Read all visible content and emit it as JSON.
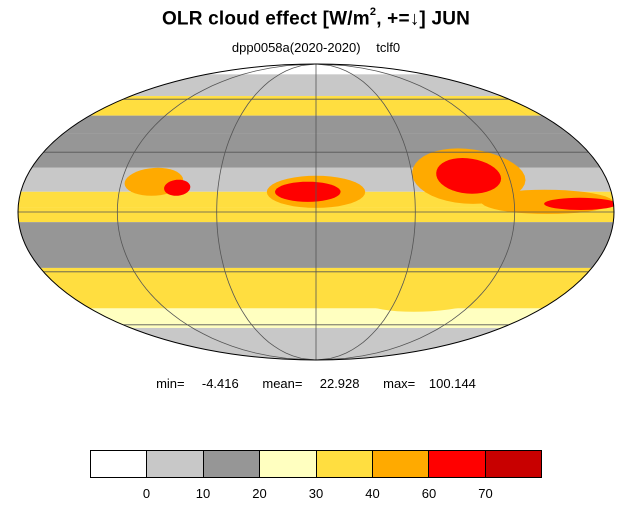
{
  "title": {
    "main": "OLR cloud effect [W/m",
    "sup": "2",
    "rest": ", +=↓]  JUN"
  },
  "subtitle": {
    "experiment": "dpp0058a(2020-2020)",
    "variable": "tclf0"
  },
  "stats": {
    "min_label": "min=",
    "min": "-4.416",
    "mean_label": "mean=",
    "mean": "22.928",
    "max_label": "max=",
    "max": "100.144"
  },
  "colorbar": {
    "colors": [
      "#ffffff",
      "#c8c8c8",
      "#969696",
      "#ffffc0",
      "#ffde40",
      "#ffaa00",
      "#ff0000",
      "#c80000"
    ],
    "ticks": [
      "0",
      "10",
      "20",
      "30",
      "40",
      "60",
      "70"
    ]
  },
  "map": {
    "projection": "mollweide",
    "field_bands": [
      {
        "lat": [
          78,
          90
        ],
        "color": "#ffffff"
      },
      {
        "lat": [
          62,
          78
        ],
        "color": "#c8c8c8"
      },
      {
        "lat": [
          50,
          62
        ],
        "color": "#ffde40"
      },
      {
        "lat": [
          40,
          50
        ],
        "color": "#969696"
      },
      {
        "lat": [
          22,
          40
        ],
        "color": "#969696"
      },
      {
        "lat": [
          10,
          22
        ],
        "color": "#c8c8c8"
      },
      {
        "lat": [
          2,
          10
        ],
        "color": "#ffde40"
      },
      {
        "lat": [
          -5,
          2
        ],
        "color": "#ffde40"
      },
      {
        "lat": [
          -28,
          -5
        ],
        "color": "#969696"
      },
      {
        "lat": [
          -50,
          -28
        ],
        "color": "#ffde40"
      },
      {
        "lat": [
          -62,
          -50
        ],
        "color": "#ffffc0"
      },
      {
        "lat": [
          -90,
          -62
        ],
        "color": "#c8c8c8"
      }
    ],
    "blobs": [
      {
        "lon": -100,
        "lat": 15,
        "rx": 18,
        "ry": 7,
        "color": "#ffaa00"
      },
      {
        "lon": -85,
        "lat": 12,
        "rx": 8,
        "ry": 4,
        "color": "#ff0000"
      },
      {
        "lon": 0,
        "lat": 10,
        "rx": 30,
        "ry": 8,
        "color": "#ffaa00"
      },
      {
        "lon": -5,
        "lat": 10,
        "rx": 20,
        "ry": 5,
        "color": "#ff0000"
      },
      {
        "lon": 95,
        "lat": 18,
        "rx": 35,
        "ry": 14,
        "color": "#ffaa00"
      },
      {
        "lon": 95,
        "lat": 18,
        "rx": 20,
        "ry": 9,
        "color": "#ff0000"
      },
      {
        "lon": 140,
        "lat": 5,
        "rx": 40,
        "ry": 6,
        "color": "#ffaa00"
      },
      {
        "lon": 160,
        "lat": 4,
        "rx": 22,
        "ry": 3,
        "color": "#ff0000"
      },
      {
        "lon": -60,
        "lat": -40,
        "rx": 35,
        "ry": 6,
        "color": "#ffde40"
      },
      {
        "lon": 80,
        "lat": -45,
        "rx": 45,
        "ry": 7,
        "color": "#ffde40"
      }
    ]
  }
}
